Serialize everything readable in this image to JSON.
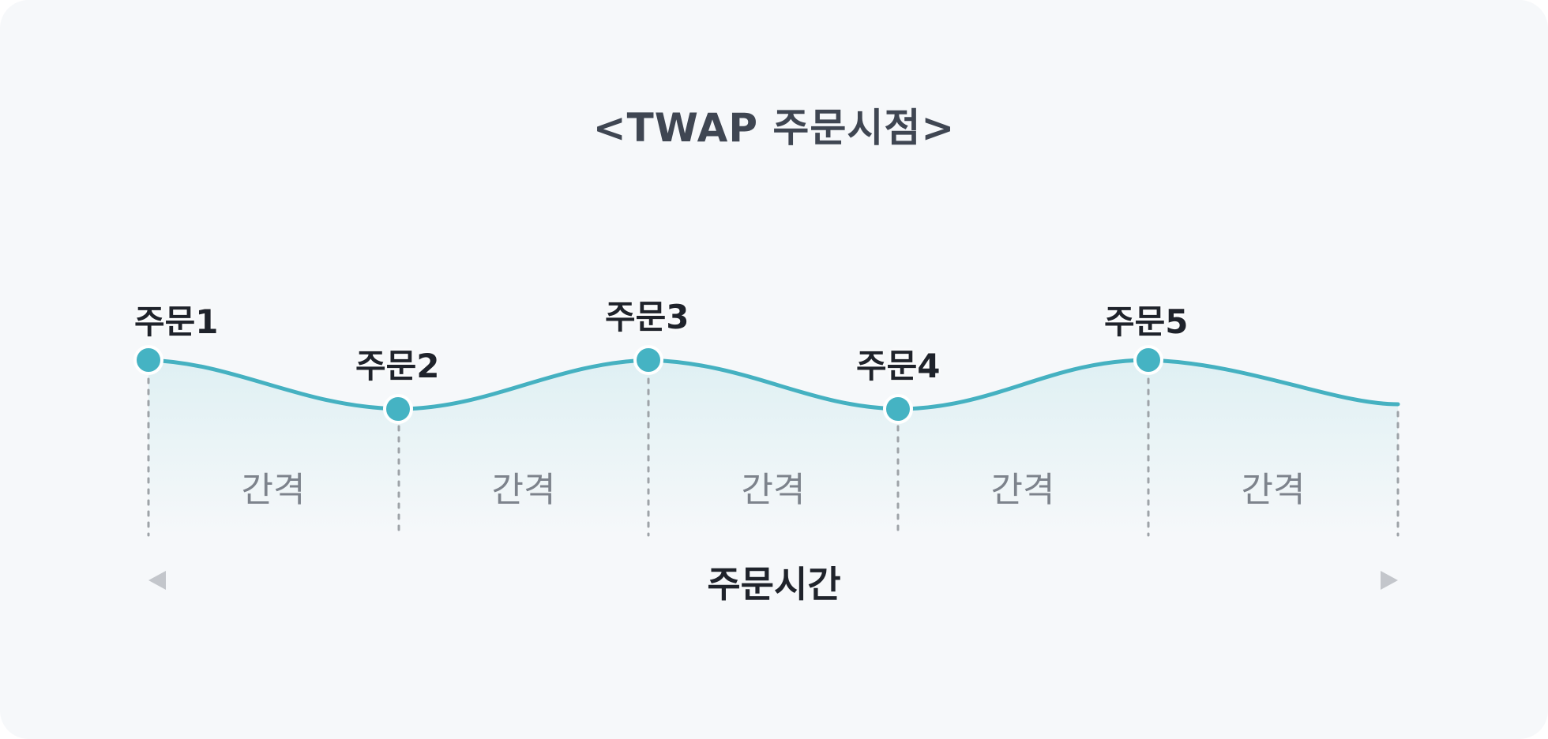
{
  "title": "<TWAP 주문시점>",
  "orders": [
    {
      "label": "주문1"
    },
    {
      "label": "주문2"
    },
    {
      "label": "주문3"
    },
    {
      "label": "주문4"
    },
    {
      "label": "주문5"
    }
  ],
  "intervals": [
    {
      "label": "간격"
    },
    {
      "label": "간격"
    },
    {
      "label": "간격"
    },
    {
      "label": "간격"
    },
    {
      "label": "간격"
    }
  ],
  "axis": {
    "label": "주문시간"
  },
  "colors": {
    "curve": "#45b1c1",
    "dot": "#45b3c3",
    "fill_top": "#dff0f3",
    "dashed": "#9ea3a8",
    "axis_arrow": "#c8cbd0"
  }
}
